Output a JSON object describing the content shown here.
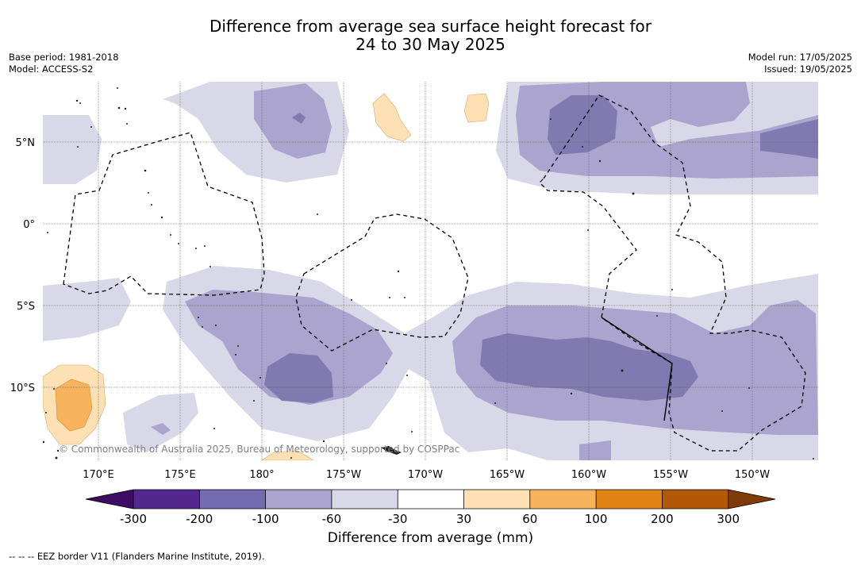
{
  "title_line1": "Difference from average sea surface height forecast for",
  "title_line2": "24 to 30 May 2025",
  "base_period": "Base period: 1981-2018",
  "model": "Model: ACCESS-S2",
  "model_run": "Model run: 17/05/2025",
  "issued": "Issued: 19/05/2025",
  "lat_labels": [
    "5°N",
    "0°",
    "5°S",
    "10°S"
  ],
  "lon_labels": [
    "170°E",
    "175°E",
    "180°",
    "175°W",
    "170°W",
    "165°W",
    "160°W",
    "155°W",
    "150°W"
  ],
  "copyright": "© Commonwealth of Australia 2025, Bureau of Meteorology, supported by COSPPac",
  "colorbar": {
    "ticks": [
      "-300",
      "-200",
      "-100",
      "-60",
      "-30",
      "30",
      "60",
      "100",
      "200",
      "300"
    ],
    "colors": [
      "#3d0c63",
      "#54278f",
      "#756bb1",
      "#aba4cf",
      "#d8d8e8",
      "#ffffff",
      "#fde0b4",
      "#f9b35c",
      "#e08314",
      "#b35806",
      "#7f3b08"
    ],
    "label": "Difference from average (mm)"
  },
  "footer": "-- -- -- EEZ border V11 (Flanders Marine Institute, 2019)."
}
